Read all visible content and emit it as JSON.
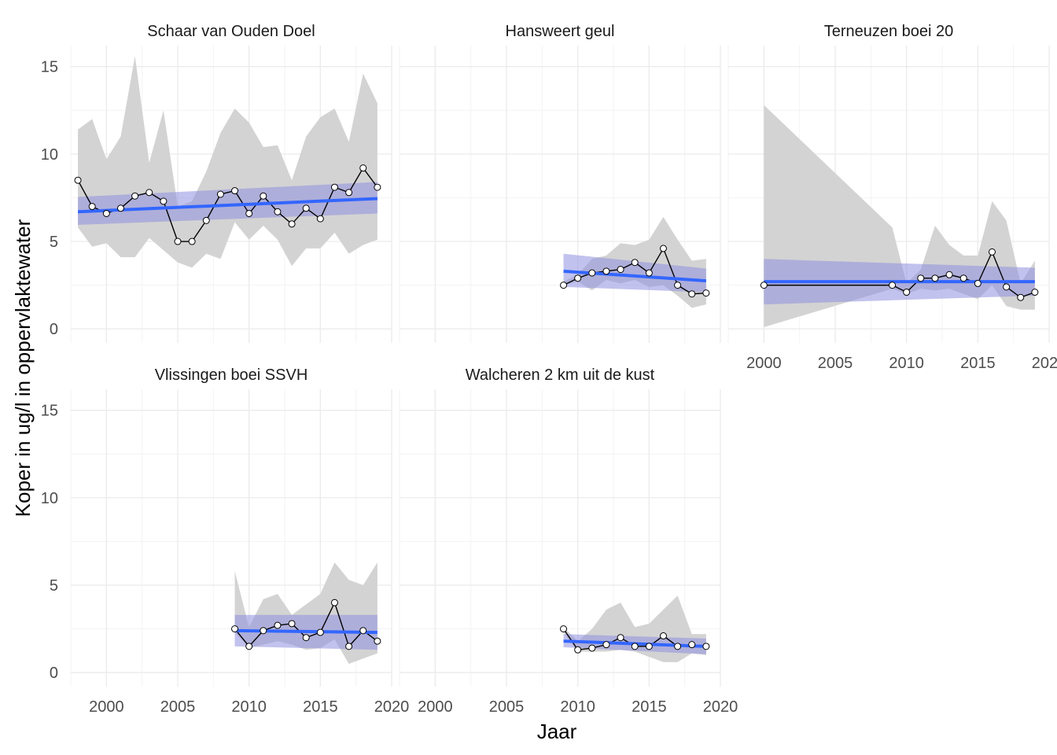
{
  "chart_data": {
    "type": "line",
    "xlabel": "Jaar",
    "ylabel": "Koper in ug/l in oppervlaktewater",
    "xlim": [
      1997.5,
      2020
    ],
    "ylim": [
      -0.8,
      16.2
    ],
    "x_ticks": [
      2000,
      2005,
      2010,
      2015,
      2020
    ],
    "y_ticks": [
      0,
      5,
      10,
      15
    ],
    "grid": true,
    "colors": {
      "ribbon_range": "#d3d3d3",
      "trend_line": "#3366ff",
      "trend_band": "#8f8fe0",
      "data_line": "#000000",
      "point_fill": "#ffffff"
    },
    "panels": [
      {
        "title": "Schaar van Ouden Doel",
        "points": [
          {
            "x": 1998,
            "y": 8.5,
            "lo": 5.8,
            "hi": 11.4
          },
          {
            "x": 1999,
            "y": 7.0,
            "lo": 4.7,
            "hi": 12.0
          },
          {
            "x": 2000,
            "y": 6.6,
            "lo": 4.9,
            "hi": 9.7
          },
          {
            "x": 2001,
            "y": 6.9,
            "lo": 4.1,
            "hi": 11.0
          },
          {
            "x": 2002,
            "y": 7.6,
            "lo": 4.1,
            "hi": 15.6
          },
          {
            "x": 2003,
            "y": 7.8,
            "lo": 5.2,
            "hi": 9.5
          },
          {
            "x": 2004,
            "y": 7.3,
            "lo": 4.5,
            "hi": 12.5
          },
          {
            "x": 2005,
            "y": 5.0,
            "lo": 3.8,
            "hi": 7.0
          },
          {
            "x": 2006,
            "y": 5.0,
            "lo": 3.5,
            "hi": 7.3
          },
          {
            "x": 2007,
            "y": 6.2,
            "lo": 4.3,
            "hi": 9.0
          },
          {
            "x": 2008,
            "y": 7.7,
            "lo": 4.0,
            "hi": 11.2
          },
          {
            "x": 2009,
            "y": 7.9,
            "lo": 6.1,
            "hi": 12.6
          },
          {
            "x": 2010,
            "y": 6.6,
            "lo": 5.1,
            "hi": 11.8
          },
          {
            "x": 2011,
            "y": 7.6,
            "lo": 5.9,
            "hi": 10.4
          },
          {
            "x": 2012,
            "y": 6.7,
            "lo": 5.1,
            "hi": 10.5
          },
          {
            "x": 2013,
            "y": 6.0,
            "lo": 3.6,
            "hi": 8.5
          },
          {
            "x": 2014,
            "y": 6.9,
            "lo": 4.6,
            "hi": 11.0
          },
          {
            "x": 2015,
            "y": 6.3,
            "lo": 4.6,
            "hi": 12.1
          },
          {
            "x": 2016,
            "y": 8.1,
            "lo": 5.5,
            "hi": 12.6
          },
          {
            "x": 2017,
            "y": 7.8,
            "lo": 4.3,
            "hi": 10.7
          },
          {
            "x": 2018,
            "y": 9.2,
            "lo": 4.8,
            "hi": 14.6
          },
          {
            "x": 2019,
            "y": 8.1,
            "lo": 5.1,
            "hi": 12.9
          }
        ],
        "trend": {
          "x": [
            1998,
            2019
          ],
          "y": [
            6.7,
            7.45
          ],
          "lo": [
            5.95,
            6.6
          ],
          "hi": [
            7.55,
            8.4
          ]
        }
      },
      {
        "title": "Hansweert geul",
        "points": [
          {
            "x": 2009,
            "y": 2.5,
            "lo": 2.5,
            "hi": 2.7
          },
          {
            "x": 2010,
            "y": 2.9,
            "lo": 2.7,
            "hi": 3.1
          },
          {
            "x": 2011,
            "y": 3.2,
            "lo": 2.2,
            "hi": 4.0
          },
          {
            "x": 2012,
            "y": 3.3,
            "lo": 2.8,
            "hi": 4.2
          },
          {
            "x": 2013,
            "y": 3.4,
            "lo": 2.6,
            "hi": 4.9
          },
          {
            "x": 2014,
            "y": 3.8,
            "lo": 2.8,
            "hi": 4.8
          },
          {
            "x": 2015,
            "y": 3.2,
            "lo": 2.4,
            "hi": 5.1
          },
          {
            "x": 2016,
            "y": 4.6,
            "lo": 2.5,
            "hi": 6.4
          },
          {
            "x": 2017,
            "y": 2.5,
            "lo": 1.9,
            "hi": 5.1
          },
          {
            "x": 2018,
            "y": 2.0,
            "lo": 1.2,
            "hi": 3.9
          },
          {
            "x": 2019,
            "y": 2.05,
            "lo": 1.4,
            "hi": 4.0
          }
        ],
        "trend": {
          "x": [
            2009,
            2019
          ],
          "y": [
            3.3,
            2.75
          ],
          "lo": [
            2.4,
            2.1
          ],
          "hi": [
            4.3,
            3.45
          ]
        }
      },
      {
        "title": "Terneuzen boei 20",
        "points": [
          {
            "x": 2000,
            "y": 2.5,
            "lo": 0.1,
            "hi": 12.8
          },
          {
            "x": 2009,
            "y": 2.5,
            "lo": 2.3,
            "hi": 5.8
          },
          {
            "x": 2010,
            "y": 2.1,
            "lo": 2.0,
            "hi": 2.6
          },
          {
            "x": 2011,
            "y": 2.9,
            "lo": 2.3,
            "hi": 3.4
          },
          {
            "x": 2012,
            "y": 2.9,
            "lo": 2.2,
            "hi": 5.9
          },
          {
            "x": 2013,
            "y": 3.1,
            "lo": 2.3,
            "hi": 4.8
          },
          {
            "x": 2014,
            "y": 2.9,
            "lo": 2.0,
            "hi": 4.2
          },
          {
            "x": 2015,
            "y": 2.6,
            "lo": 1.7,
            "hi": 4.2
          },
          {
            "x": 2016,
            "y": 4.4,
            "lo": 2.5,
            "hi": 7.3
          },
          {
            "x": 2017,
            "y": 2.4,
            "lo": 1.3,
            "hi": 6.2
          },
          {
            "x": 2018,
            "y": 1.8,
            "lo": 1.1,
            "hi": 2.6
          },
          {
            "x": 2019,
            "y": 2.1,
            "lo": 1.1,
            "hi": 3.9
          }
        ],
        "trend": {
          "x": [
            2000,
            2019
          ],
          "y": [
            2.7,
            2.7
          ],
          "lo": [
            1.4,
            1.9
          ],
          "hi": [
            4.0,
            3.5
          ]
        }
      },
      {
        "title": "Vlissingen boei SSVH",
        "points": [
          {
            "x": 2009,
            "y": 2.5,
            "lo": 2.3,
            "hi": 5.8
          },
          {
            "x": 2010,
            "y": 1.5,
            "lo": 1.4,
            "hi": 2.6
          },
          {
            "x": 2011,
            "y": 2.4,
            "lo": 1.6,
            "hi": 4.2
          },
          {
            "x": 2012,
            "y": 2.7,
            "lo": 1.8,
            "hi": 4.5
          },
          {
            "x": 2013,
            "y": 2.8,
            "lo": 1.6,
            "hi": 3.3
          },
          {
            "x": 2014,
            "y": 2.0,
            "lo": 1.3,
            "hi": 3.9
          },
          {
            "x": 2015,
            "y": 2.3,
            "lo": 1.4,
            "hi": 4.5
          },
          {
            "x": 2016,
            "y": 4.0,
            "lo": 1.9,
            "hi": 6.3
          },
          {
            "x": 2017,
            "y": 1.5,
            "lo": 0.5,
            "hi": 5.3
          },
          {
            "x": 2018,
            "y": 2.4,
            "lo": 0.8,
            "hi": 5.0
          },
          {
            "x": 2019,
            "y": 1.8,
            "lo": 1.1,
            "hi": 6.3
          }
        ],
        "trend": {
          "x": [
            2009,
            2019
          ],
          "y": [
            2.4,
            2.3
          ],
          "lo": [
            1.5,
            1.3
          ],
          "hi": [
            3.3,
            3.3
          ]
        }
      },
      {
        "title": "Walcheren 2 km uit de kust",
        "points": [
          {
            "x": 2009,
            "y": 2.5,
            "lo": 2.3,
            "hi": 2.6
          },
          {
            "x": 2010,
            "y": 1.3,
            "lo": 1.2,
            "hi": 1.8
          },
          {
            "x": 2011,
            "y": 1.4,
            "lo": 1.2,
            "hi": 2.5
          },
          {
            "x": 2012,
            "y": 1.6,
            "lo": 1.2,
            "hi": 3.6
          },
          {
            "x": 2013,
            "y": 2.0,
            "lo": 1.3,
            "hi": 4.0
          },
          {
            "x": 2014,
            "y": 1.5,
            "lo": 1.2,
            "hi": 2.6
          },
          {
            "x": 2015,
            "y": 1.5,
            "lo": 0.9,
            "hi": 2.8
          },
          {
            "x": 2016,
            "y": 2.1,
            "lo": 0.6,
            "hi": 3.6
          },
          {
            "x": 2017,
            "y": 1.5,
            "lo": 0.6,
            "hi": 4.4
          },
          {
            "x": 2018,
            "y": 1.6,
            "lo": 1.1,
            "hi": 2.2
          },
          {
            "x": 2019,
            "y": 1.5,
            "lo": 1.0,
            "hi": 2.2
          }
        ],
        "trend": {
          "x": [
            2009,
            2019
          ],
          "y": [
            1.8,
            1.5
          ],
          "lo": [
            1.45,
            1.05
          ],
          "hi": [
            2.2,
            1.95
          ]
        }
      }
    ]
  }
}
